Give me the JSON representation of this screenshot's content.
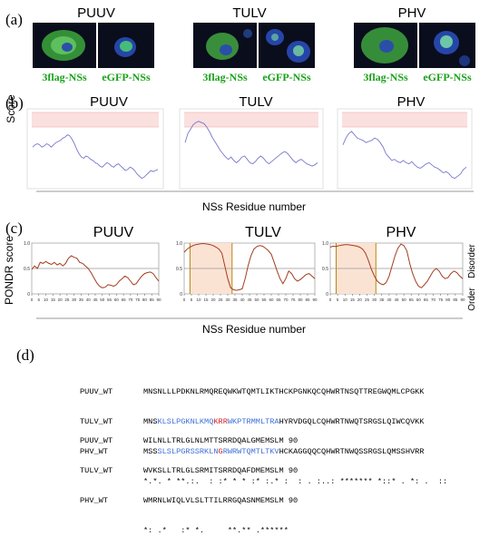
{
  "panel_a": {
    "label": "(a)",
    "viruses": [
      {
        "name": "PUUV",
        "images": [
          "3flag-NSs",
          "eGFP-NSs"
        ]
      },
      {
        "name": "TULV",
        "images": [
          "3flag-NSs",
          "eGFP-NSs"
        ]
      },
      {
        "name": "PHV",
        "images": [
          "3flag-NSs",
          "eGFP-NSs"
        ]
      }
    ]
  },
  "panel_b": {
    "label": "(b)",
    "ylabel": "Score",
    "xlabel": "NSs Residue number",
    "viruses": [
      "PUUV",
      "TULV",
      "PHV"
    ]
  },
  "panel_c": {
    "label": "(c)",
    "ylabel": "PONDR score",
    "xlabel": "NSs Residue number",
    "disorder_label": "Disorder",
    "order_label": "Order",
    "viruses": [
      "PUUV",
      "TULV",
      "PHV"
    ]
  },
  "panel_d": {
    "label": "(d)",
    "block1": {
      "names": [
        "PUUV_WT",
        "TULV_WT",
        "PHV_WT"
      ],
      "puuv": "MNSNLLLPDKNLRMQREQWKWTQMTLIKTHCKPGNKQCQHWRTNSQTTREGWQMLCPGKK",
      "tulv_plain1": "MNS",
      "tulv_blue1": "KLSLPGKNLKMQ",
      "tulv_red": "KRR",
      "tulv_blue2": "WKPTRMMLTRA",
      "tulv_plain2": "HYRVDGQLCQHWRTNWQTSRGSLQIWCQVKK",
      "phv_plain1": "MSS",
      "phv_blue1": "SLSLPGRSSRKLN",
      "phv_red": "G",
      "phv_blue2": "RWRWTQMTLTKV",
      "phv_plain2": "HCKAGGQQCQHWRTNWQSSRGSLQMSSHVRR",
      "consensus": "*.*. * **.:.  : :* * * :* :.* :  : . :..: ******* *::* . *: .  ::"
    },
    "block2": {
      "names": [
        "PUUV_WT",
        "TULV_WT",
        "PHV_WT"
      ],
      "seqs": [
        "WILNLLTRLGLNLMTTSRRDQALGMEMSLM 90",
        "WVKSLLTRLGLSRMITSRRDQAFDMEMSLM 90",
        "WMRNLWIQLVLSLTTILRRGQASNMEMSLM 90"
      ],
      "consensus": "*: .*   :* *.     **.** .******"
    }
  },
  "chart_data": [
    {
      "type": "line",
      "panel": "b",
      "title": "PUUV",
      "ylabel": "Score",
      "xlabel": "NSs Residue number",
      "y": [
        0.64,
        0.66,
        0.67,
        0.66,
        0.64,
        0.65,
        0.67,
        0.66,
        0.64,
        0.66,
        0.68,
        0.69,
        0.7,
        0.72,
        0.73,
        0.75,
        0.74,
        0.71,
        0.67,
        0.62,
        0.58,
        0.55,
        0.54,
        0.56,
        0.55,
        0.53,
        0.52,
        0.5,
        0.49,
        0.47,
        0.46,
        0.48,
        0.5,
        0.49,
        0.47,
        0.46,
        0.48,
        0.49,
        0.47,
        0.45,
        0.43,
        0.44,
        0.46,
        0.45,
        0.43,
        0.4,
        0.38,
        0.36,
        0.37,
        0.39,
        0.41,
        0.43,
        0.42,
        0.43,
        0.44
      ]
    },
    {
      "type": "line",
      "panel": "b",
      "title": "TULV",
      "ylabel": "Score",
      "xlabel": "NSs Residue number",
      "y": [
        0.68,
        0.76,
        0.8,
        0.84,
        0.86,
        0.87,
        0.86,
        0.85,
        0.82,
        0.78,
        0.73,
        0.69,
        0.65,
        0.61,
        0.58,
        0.55,
        0.53,
        0.55,
        0.52,
        0.5,
        0.52,
        0.55,
        0.56,
        0.53,
        0.5,
        0.49,
        0.51,
        0.54,
        0.56,
        0.54,
        0.51,
        0.49,
        0.51,
        0.53,
        0.55,
        0.57,
        0.59,
        0.6,
        0.58,
        0.55,
        0.52,
        0.5,
        0.52,
        0.53,
        0.51,
        0.49,
        0.48,
        0.47,
        0.48,
        0.5
      ]
    },
    {
      "type": "line",
      "panel": "b",
      "title": "PHV",
      "ylabel": "Score",
      "xlabel": "NSs Residue number",
      "y": [
        0.66,
        0.72,
        0.76,
        0.78,
        0.75,
        0.72,
        0.71,
        0.7,
        0.68,
        0.69,
        0.7,
        0.72,
        0.71,
        0.68,
        0.64,
        0.58,
        0.55,
        0.52,
        0.53,
        0.51,
        0.5,
        0.52,
        0.5,
        0.49,
        0.51,
        0.48,
        0.46,
        0.45,
        0.47,
        0.49,
        0.5,
        0.48,
        0.46,
        0.45,
        0.43,
        0.41,
        0.42,
        0.4,
        0.37,
        0.36,
        0.38,
        0.4,
        0.44,
        0.46
      ]
    },
    {
      "type": "line",
      "panel": "c",
      "title": "PUUV",
      "ylabel": "PONDR score",
      "xlabel": "NSs Residue number",
      "xlim": [
        0,
        90
      ],
      "ylim": [
        0,
        1
      ],
      "x": [
        0,
        2,
        4,
        6,
        8,
        10,
        12,
        14,
        16,
        18,
        20,
        22,
        24,
        26,
        28,
        30,
        32,
        34,
        36,
        38,
        40,
        42,
        44,
        46,
        48,
        50,
        52,
        54,
        56,
        58,
        60,
        62,
        64,
        66,
        68,
        70,
        72,
        74,
        76,
        78,
        80,
        82,
        84,
        86,
        88,
        90
      ],
      "y": [
        0.48,
        0.55,
        0.5,
        0.62,
        0.6,
        0.64,
        0.6,
        0.58,
        0.62,
        0.57,
        0.6,
        0.55,
        0.6,
        0.7,
        0.75,
        0.72,
        0.7,
        0.62,
        0.6,
        0.55,
        0.5,
        0.42,
        0.32,
        0.22,
        0.15,
        0.12,
        0.13,
        0.18,
        0.17,
        0.15,
        0.18,
        0.25,
        0.3,
        0.35,
        0.32,
        0.25,
        0.18,
        0.2,
        0.28,
        0.35,
        0.4,
        0.42,
        0.43,
        0.4,
        0.32,
        0.25
      ]
    },
    {
      "type": "line",
      "panel": "c",
      "title": "TULV",
      "ylabel": "PONDR score",
      "xlabel": "NSs Residue number",
      "xlim": [
        0,
        90
      ],
      "ylim": [
        0,
        1
      ],
      "x": [
        0,
        2,
        4,
        6,
        8,
        10,
        12,
        14,
        16,
        18,
        20,
        22,
        24,
        26,
        28,
        30,
        32,
        34,
        36,
        38,
        40,
        42,
        44,
        46,
        48,
        50,
        52,
        54,
        56,
        58,
        60,
        62,
        64,
        66,
        68,
        70,
        72,
        74,
        76,
        78,
        80,
        82,
        84,
        86,
        88,
        90
      ],
      "y": [
        0.82,
        0.88,
        0.92,
        0.95,
        0.97,
        0.98,
        0.99,
        0.99,
        0.98,
        0.97,
        0.95,
        0.92,
        0.88,
        0.8,
        0.55,
        0.3,
        0.12,
        0.08,
        0.07,
        0.08,
        0.1,
        0.3,
        0.55,
        0.75,
        0.88,
        0.93,
        0.95,
        0.94,
        0.9,
        0.85,
        0.78,
        0.62,
        0.45,
        0.3,
        0.2,
        0.3,
        0.45,
        0.4,
        0.3,
        0.25,
        0.28,
        0.33,
        0.38,
        0.4,
        0.35,
        0.3
      ]
    },
    {
      "type": "line",
      "panel": "c",
      "title": "PHV",
      "ylabel": "PONDR score",
      "xlabel": "NSs Residue number",
      "xlim": [
        0,
        90
      ],
      "ylim": [
        0,
        1
      ],
      "x": [
        0,
        2,
        4,
        6,
        8,
        10,
        12,
        14,
        16,
        18,
        20,
        22,
        24,
        26,
        28,
        30,
        32,
        34,
        36,
        38,
        40,
        42,
        44,
        46,
        48,
        50,
        52,
        54,
        56,
        58,
        60,
        62,
        64,
        66,
        68,
        70,
        72,
        74,
        76,
        78,
        80,
        82,
        84,
        86,
        88,
        90
      ],
      "y": [
        0.92,
        0.94,
        0.93,
        0.95,
        0.96,
        0.97,
        0.97,
        0.96,
        0.95,
        0.94,
        0.92,
        0.88,
        0.8,
        0.65,
        0.48,
        0.35,
        0.25,
        0.2,
        0.18,
        0.22,
        0.35,
        0.55,
        0.75,
        0.9,
        0.98,
        0.95,
        0.85,
        0.6,
        0.4,
        0.25,
        0.15,
        0.12,
        0.18,
        0.25,
        0.35,
        0.45,
        0.5,
        0.45,
        0.35,
        0.3,
        0.32,
        0.4,
        0.45,
        0.42,
        0.35,
        0.3
      ]
    }
  ],
  "colors": {
    "img_label": "#1aa11a",
    "line_b": "#7777cc",
    "line_c": "#a33c1e",
    "disorder_band": "#fbe3d4",
    "band_b": "#fbe0e0"
  }
}
